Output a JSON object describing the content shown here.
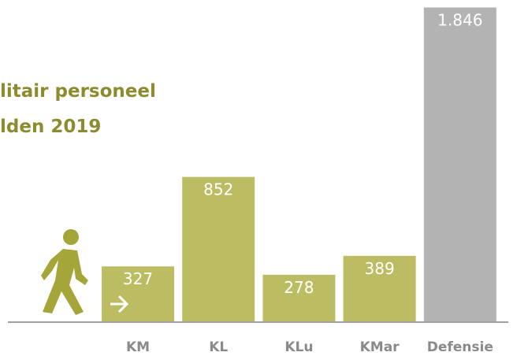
{
  "chart_data": {
    "type": "bar",
    "title_lines": [
      "litair personeel",
      "lden 2019"
    ],
    "categories": [
      "KM",
      "KL",
      "KLu",
      "KMar",
      "Defensie"
    ],
    "values": [
      327,
      852,
      278,
      389,
      1846
    ],
    "value_labels": [
      "327",
      "852",
      "278",
      "389",
      "1.846"
    ],
    "colors": [
      "#bcbd63",
      "#bcbd63",
      "#bcbd63",
      "#bcbd63",
      "#b3b3b3"
    ],
    "ylim": [
      0,
      1890
    ]
  }
}
